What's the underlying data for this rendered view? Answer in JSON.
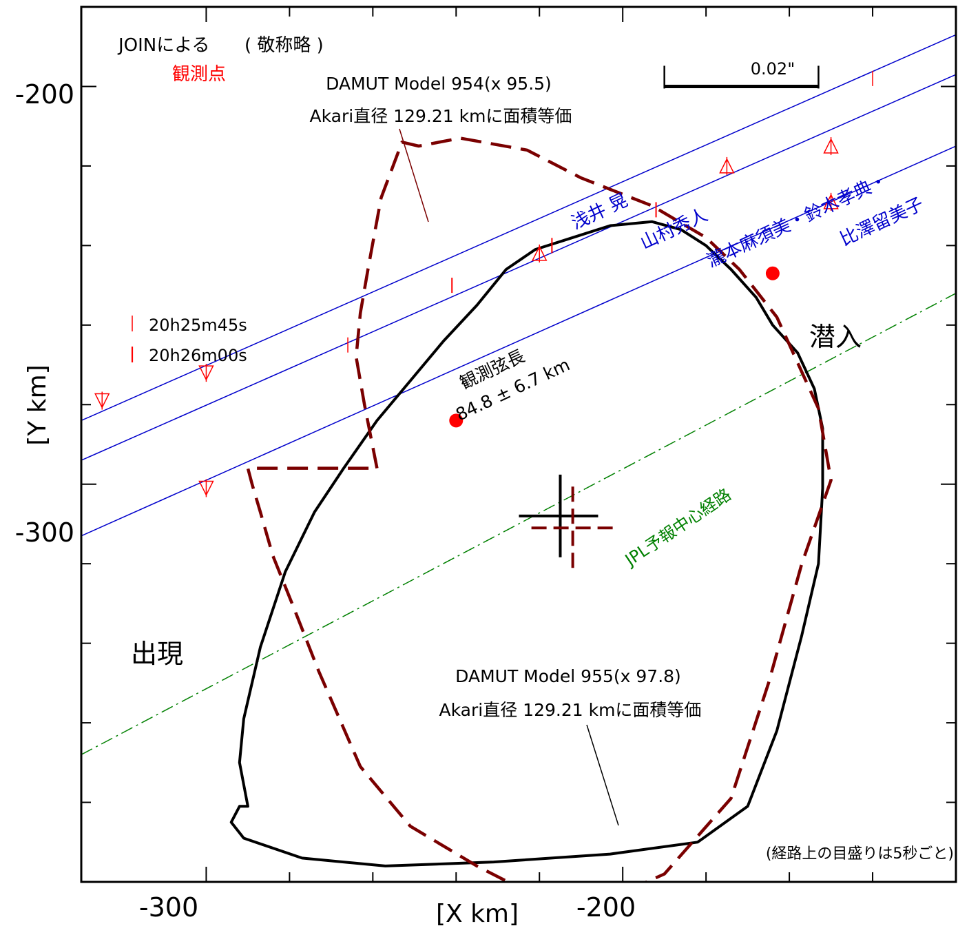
{
  "chart_data": {
    "type": "scatter",
    "xlabel": "[X  km]",
    "ylabel": "[Y  km]",
    "xlim": [
      -330,
      -120
    ],
    "ylim": [
      -400,
      -180
    ],
    "x_major_ticks": [
      -300,
      -200
    ],
    "x_minor_ticks": [
      -300,
      -280,
      -260,
      -240,
      -220,
      -200,
      -180,
      -160,
      -140,
      -120
    ],
    "y_major_ticks": [
      -200,
      -300
    ],
    "y_minor_ticks": [
      -200,
      -220,
      -240,
      -260,
      -280,
      -300,
      -320,
      -340,
      -360,
      -380
    ],
    "header": {
      "text": "JOINによる",
      "paren_text": "( 敬称略 )",
      "observed_label": "観測点"
    },
    "scale_bar": {
      "label": "0.02\"",
      "x_from": -190,
      "x_to": -153,
      "y": -200
    },
    "colors": {
      "profile_955": "#000000",
      "profile_954": "#7a0000",
      "chords": "#0000cc",
      "path": "#008000",
      "marks": "#ff0000",
      "points": "#ff0000"
    },
    "series": [
      {
        "name": "DAMUT Model 955(x 97.8)",
        "style": "solid",
        "points": [
          [
            -290,
            -381
          ],
          [
            -292,
            -370
          ],
          [
            -291,
            -359
          ],
          [
            -287,
            -341
          ],
          [
            -281,
            -322
          ],
          [
            -274,
            -307
          ],
          [
            -267,
            -296
          ],
          [
            -259,
            -284
          ],
          [
            -251,
            -274
          ],
          [
            -243,
            -264
          ],
          [
            -235,
            -255
          ],
          [
            -228,
            -246
          ],
          [
            -221,
            -241
          ],
          [
            -212,
            -238
          ],
          [
            -203,
            -235
          ],
          [
            -193,
            -234
          ],
          [
            -186,
            -236
          ],
          [
            -180,
            -240
          ],
          [
            -174,
            -246
          ],
          [
            -168,
            -253
          ],
          [
            -164,
            -260
          ],
          [
            -158,
            -267
          ],
          [
            -154,
            -276
          ],
          [
            -152,
            -286
          ],
          [
            -152,
            -301
          ],
          [
            -153,
            -320
          ],
          [
            -157,
            -338
          ],
          [
            -163,
            -362
          ],
          [
            -170,
            -381
          ],
          [
            -182,
            -390
          ],
          [
            -203,
            -393
          ],
          [
            -231,
            -395
          ],
          [
            -257,
            -396
          ],
          [
            -277,
            -394
          ],
          [
            -291,
            -389
          ],
          [
            -294,
            -385
          ],
          [
            -292,
            -381
          ]
        ]
      },
      {
        "name": "DAMUT Model 954(x 95.5)",
        "style": "dashed",
        "points": [
          [
            -259,
            -296
          ],
          [
            -262,
            -280
          ],
          [
            -264,
            -268
          ],
          [
            -263,
            -257
          ],
          [
            -261,
            -245
          ],
          [
            -258,
            -228
          ],
          [
            -253,
            -214
          ],
          [
            -249,
            -215
          ],
          [
            -239,
            -213
          ],
          [
            -223,
            -216
          ],
          [
            -210,
            -223
          ],
          [
            -193,
            -230
          ],
          [
            -180,
            -238
          ],
          [
            -172,
            -246
          ],
          [
            -163,
            -258
          ],
          [
            -153,
            -281
          ],
          [
            -150,
            -299
          ],
          [
            -157,
            -320
          ],
          [
            -165,
            -350
          ],
          [
            -174,
            -379
          ],
          [
            -190,
            -398
          ],
          [
            -207,
            -406
          ],
          [
            -222,
            -403
          ],
          [
            -235,
            -396
          ],
          [
            -251,
            -386
          ],
          [
            -263,
            -371
          ],
          [
            -273,
            -347
          ],
          [
            -279,
            -331
          ],
          [
            -284,
            -318
          ],
          [
            -287,
            -307
          ],
          [
            -289,
            -300
          ],
          [
            -290,
            -296
          ]
        ]
      }
    ],
    "profile_labels": [
      {
        "line1": "DAMUT Model 954(x 95.5)",
        "line2": "Akari直径 129.21 kmに面積等価"
      },
      {
        "line1": "DAMUT Model 955(x 97.8)",
        "line2": "Akari直径 129.21 kmに面積等価"
      }
    ],
    "observer_chords": [
      {
        "observer": "浅井 晃",
        "points": [
          [
            -330,
            -284
          ],
          [
            -120,
            -187
          ]
        ]
      },
      {
        "observer": "山村秀人",
        "points": [
          [
            -330,
            -294
          ],
          [
            -120,
            -197
          ]
        ]
      },
      {
        "observer": "瀧本麻須美・鈴木孝典・",
        "observer_line2": "比澤留美子",
        "points": [
          [
            -330,
            -313
          ],
          [
            -120,
            -215
          ]
        ]
      }
    ],
    "chord_triangles": [
      {
        "x": -325,
        "y": -279,
        "dir": "down"
      },
      {
        "x": -300,
        "y": -272,
        "dir": "down"
      },
      {
        "x": -300,
        "y": -301,
        "dir": "down"
      },
      {
        "x": -220,
        "y": -242,
        "dir": "up"
      },
      {
        "x": -175,
        "y": -220,
        "dir": "up"
      },
      {
        "x": -150,
        "y": -215,
        "dir": "up"
      },
      {
        "x": -150,
        "y": -229,
        "dir": "up"
      }
    ],
    "time_ticks": [
      {
        "x": -266,
        "y": -265,
        "type": "major"
      },
      {
        "x": -241,
        "y": -250,
        "type": "minor"
      },
      {
        "x": -217,
        "y": -240,
        "type": "minor"
      },
      {
        "x": -192,
        "y": -231,
        "type": "minor"
      },
      {
        "x": -140,
        "y": -198,
        "type": "major"
      }
    ],
    "time_legend": [
      {
        "label": "20h25m45s",
        "type": "major"
      },
      {
        "label": "20h26m00s",
        "type": "minor"
      }
    ],
    "observed_points": [
      [
        -240,
        -284
      ],
      [
        -164,
        -247
      ]
    ],
    "jpl_path": {
      "label": "JPL予報中心経路",
      "points": [
        [
          -330,
          -368
        ],
        [
          -120,
          -252
        ]
      ]
    },
    "centers": [
      {
        "name": "center-955",
        "x": -215,
        "y": -308
      },
      {
        "name": "center-954",
        "x": -212,
        "y": -311
      }
    ],
    "chord_annotation": {
      "line1": "観測弦長",
      "line2": "84.8 ± 6.7 km"
    },
    "ingress_label": "潜入",
    "egress_label": "出現",
    "footnote": "(経路上の目盛りは5秒ごと)",
    "axis_tick_labels": {
      "x": [
        "-300",
        "-200"
      ],
      "y": [
        "-200",
        "-300"
      ]
    }
  }
}
